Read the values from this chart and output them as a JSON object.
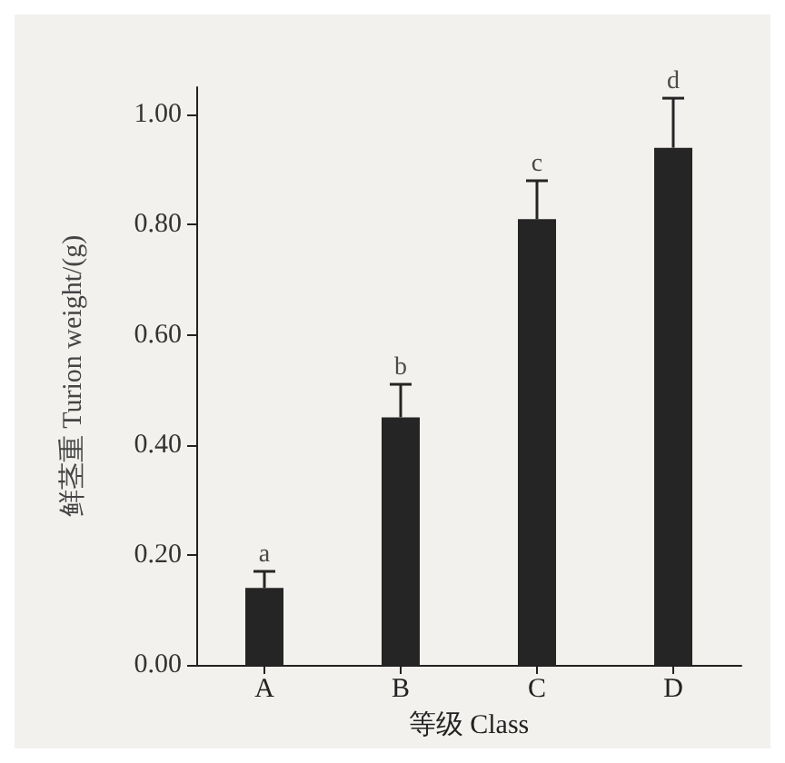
{
  "chart_data": {
    "type": "bar",
    "xlabel": "等级 Class",
    "ylabel": "鲜茎重 Turion weight/(g)",
    "categories": [
      "A",
      "B",
      "C",
      "D"
    ],
    "values": [
      0.14,
      0.45,
      0.81,
      0.94
    ],
    "errors": [
      0.03,
      0.06,
      0.07,
      0.09
    ],
    "color": "#252525",
    "ylim": [
      0,
      1.05
    ],
    "yticks": [
      {
        "value": 0,
        "label": "0.00"
      },
      {
        "value": 0.2,
        "label": "0.20"
      },
      {
        "value": 0.4,
        "label": "0.40"
      },
      {
        "value": 0.6,
        "label": "0.60"
      },
      {
        "value": 0.8,
        "label": "0.80"
      },
      {
        "value": 1,
        "label": "1.00"
      }
    ],
    "annotations": [
      {
        "text": "a",
        "x": "A",
        "y": 0.17
      },
      {
        "text": "b",
        "x": "B",
        "y": 0.51
      },
      {
        "text": "c",
        "x": "C",
        "y": 0.88
      },
      {
        "text": "d",
        "x": "D",
        "y": 1.03
      }
    ],
    "grid": false
  }
}
